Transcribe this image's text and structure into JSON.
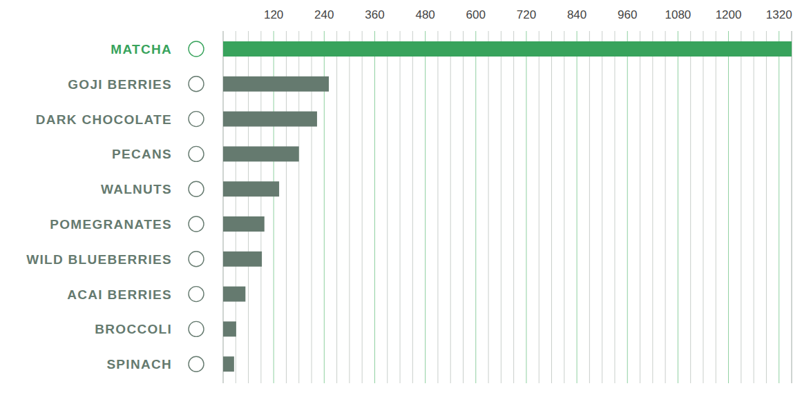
{
  "chart_data": {
    "type": "bar",
    "orientation": "horizontal",
    "categories": [
      "MATCHA",
      "GOJI BERRIES",
      "DARK CHOCOLATE",
      "PECANS",
      "WALNUTS",
      "POMEGRANATES",
      "WILD BLUEBERRIES",
      "ACAI BERRIES",
      "BROCCOLI",
      "SPINACH"
    ],
    "values": [
      1350,
      251,
      223,
      180,
      133,
      98,
      92,
      53,
      31,
      26
    ],
    "colors": [
      "#38a35c",
      "#657a6f",
      "#657a6f",
      "#657a6f",
      "#657a6f",
      "#657a6f",
      "#657a6f",
      "#657a6f",
      "#657a6f",
      "#657a6f"
    ],
    "xlim": [
      0,
      1350
    ],
    "xticks": [
      120,
      240,
      360,
      480,
      600,
      720,
      840,
      960,
      1080,
      1200,
      1320
    ],
    "grid": true
  }
}
